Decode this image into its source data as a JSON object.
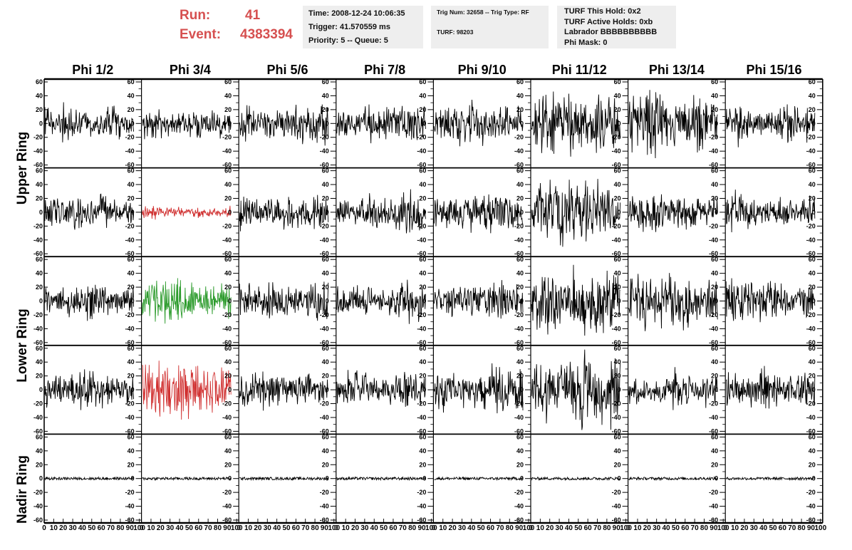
{
  "header": {
    "run_label": "Run:",
    "run_value": "41",
    "event_label": "Event:",
    "event_value": "4383394",
    "time": "Time: 2008-12-24 10:06:35",
    "trigger": "Trigger: 41.570559 ms",
    "priority": "Priority: 5 -- Queue: 5",
    "trig_num": "Trig Num: 32658 -- Trig Type: RF",
    "turf": "TURF: 98203",
    "turf_hold": "TURF This Hold: 0x2",
    "turf_active": "TURF Active Holds: 0xb",
    "labrador": "Labrador BBBBBBBBBB",
    "phi_mask": "Phi Mask: 0"
  },
  "colors": {
    "header_red": "#d65050",
    "trace_default": "#000000",
    "trace_red": "#d03030",
    "trace_green": "#2a9a2a",
    "info_bg": "#eeeeee"
  },
  "chart_data": {
    "type": "line",
    "columns": [
      "Phi 1/2",
      "Phi 3/4",
      "Phi 5/6",
      "Phi 7/8",
      "Phi 9/10",
      "Phi 11/12",
      "Phi 13/14",
      "Phi 15/16"
    ],
    "row_groups": [
      {
        "label": "Upper Ring",
        "rows": [
          0,
          1
        ]
      },
      {
        "label": "Lower Ring",
        "rows": [
          2,
          3
        ]
      },
      {
        "label": "Nadir Ring",
        "rows": [
          4
        ]
      }
    ],
    "ylim": [
      -60,
      60
    ],
    "yticks": [
      "60",
      "40",
      "20",
      "0",
      "-20",
      "-40",
      "-60"
    ],
    "xlim": [
      0,
      100
    ],
    "xticks": [
      "0",
      "10",
      "20",
      "30",
      "40",
      "50",
      "60",
      "70",
      "80",
      "90",
      "100"
    ],
    "samples": 100,
    "amplitude_grid": [
      [
        14,
        12,
        15,
        15,
        16,
        25,
        25,
        16
      ],
      [
        14,
        5,
        14,
        15,
        16,
        26,
        15,
        15
      ],
      [
        14,
        17,
        15,
        15,
        15,
        28,
        22,
        16
      ],
      [
        14,
        24,
        14,
        16,
        19,
        30,
        14,
        15
      ],
      [
        2,
        2,
        2,
        2,
        2,
        2,
        2,
        2
      ]
    ],
    "highlight": [
      {
        "row": 1,
        "col": 1,
        "color": "#d03030"
      },
      {
        "row": 2,
        "col": 1,
        "color": "#2a9a2a"
      },
      {
        "row": 3,
        "col": 1,
        "color": "#d03030"
      }
    ]
  }
}
